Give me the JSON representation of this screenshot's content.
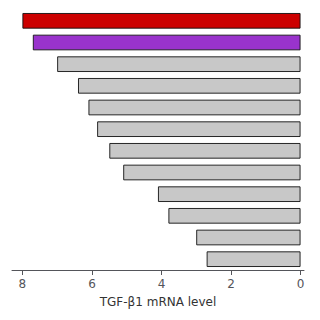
{
  "chart_data": {
    "type": "bar",
    "orientation": "horizontal",
    "xlabel": "TGF-β1 mRNA level",
    "categories": [
      null,
      null,
      null,
      null,
      null,
      null,
      null,
      null,
      null,
      null,
      null,
      null
    ],
    "values": [
      8.0,
      7.7,
      7.0,
      6.4,
      6.1,
      5.85,
      5.5,
      5.1,
      4.1,
      3.8,
      3.0,
      2.7
    ],
    "colors": [
      "#cc0000",
      "#9933cc",
      "#c8c8c8",
      "#c8c8c8",
      "#c8c8c8",
      "#c8c8c8",
      "#c8c8c8",
      "#c8c8c8",
      "#c8c8c8",
      "#c8c8c8",
      "#c8c8c8",
      "#c8c8c8"
    ],
    "xlim": [
      8.3,
      -0.1
    ],
    "xticks": [
      8,
      6,
      4,
      2,
      0
    ],
    "grid": false,
    "tick_labels": "x"
  }
}
